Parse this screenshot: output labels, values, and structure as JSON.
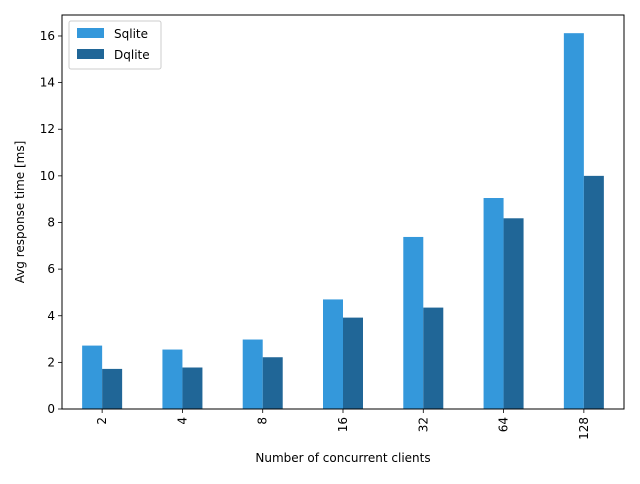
{
  "chart_data": {
    "type": "bar",
    "title": "",
    "xlabel": "Number of concurrent clients",
    "ylabel": "Avg response time [ms]",
    "categories": [
      "2",
      "4",
      "8",
      "16",
      "32",
      "64",
      "128"
    ],
    "ylim": [
      0,
      16.9
    ],
    "yticks": [
      0,
      2,
      4,
      6,
      8,
      10,
      12,
      14,
      16
    ],
    "grid": false,
    "legend_position": "top-left",
    "series": [
      {
        "name": "Sqlite",
        "color": "#3498db",
        "values": [
          2.72,
          2.55,
          2.98,
          4.7,
          7.38,
          9.05,
          16.12
        ]
      },
      {
        "name": "Dqlite",
        "color": "#206697",
        "values": [
          1.72,
          1.78,
          2.22,
          3.92,
          4.35,
          8.18,
          10.0
        ]
      }
    ]
  }
}
